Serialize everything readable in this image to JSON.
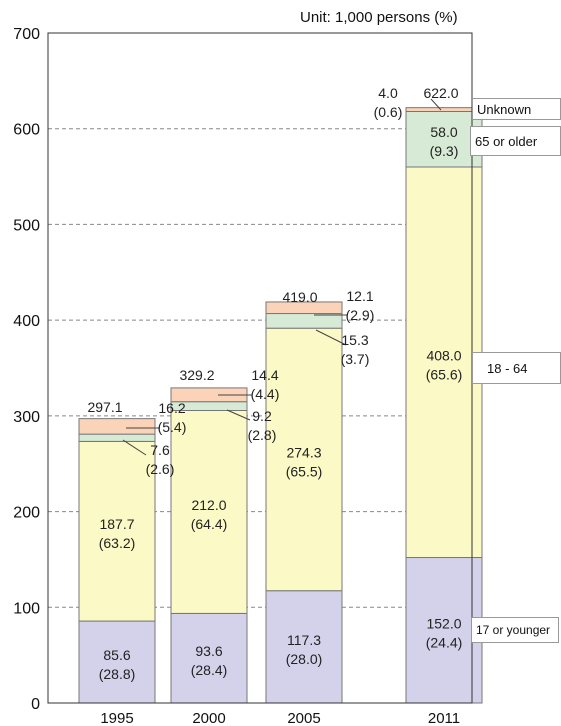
{
  "chart_data": {
    "type": "bar",
    "stacked": true,
    "unit": "Unit: 1,000 persons (%)",
    "categories": [
      "1995",
      "2000",
      "2005",
      "2011"
    ],
    "ylim": [
      0,
      700
    ],
    "yticks": [
      "0",
      "100",
      "200",
      "300",
      "400",
      "500",
      "600",
      "700"
    ],
    "grid": "dashed horizontal",
    "series": [
      {
        "name": "17 or younger",
        "color": "#d4d2ea",
        "values": [
          85.6,
          93.6,
          117.3,
          152.0
        ],
        "labels": [
          "85.6",
          "93.6",
          "117.3",
          "152.0"
        ],
        "pct": [
          "(28.8)",
          "(28.4)",
          "(28.0)",
          "(24.4)"
        ]
      },
      {
        "name": "18 - 64",
        "color": "#fbf9c6",
        "values": [
          187.7,
          212.0,
          274.3,
          408.0
        ],
        "labels": [
          "187.7",
          "212.0",
          "274.3",
          "408.0"
        ],
        "pct": [
          "(63.2)",
          "(64.4)",
          "(65.5)",
          "(65.6)"
        ]
      },
      {
        "name": "65 or older",
        "color": "#d6ead6",
        "values": [
          7.6,
          9.2,
          15.3,
          58.0
        ],
        "labels": [
          "7.6",
          "9.2",
          "15.3",
          "58.0"
        ],
        "pct": [
          "(2.6)",
          "(2.8)",
          "(3.7)",
          "(9.3)"
        ]
      },
      {
        "name": "Unknown",
        "color": "#fbd3b8",
        "values": [
          16.2,
          14.4,
          12.1,
          4.0
        ],
        "labels": [
          "16.2",
          "14.4",
          "12.1",
          "4.0"
        ],
        "pct": [
          "(5.4)",
          "(4.4)",
          "(2.9)",
          "(0.6)"
        ]
      }
    ],
    "totals": [
      "297.1",
      "329.2",
      "419.0",
      "622.0"
    ],
    "totals_values": [
      297.1,
      329.2,
      419.0,
      622.0
    ],
    "legend": [
      "Unknown",
      "65 or older",
      "18 - 64",
      "17 or younger"
    ]
  },
  "colors": {
    "bar_border": "#777777",
    "grid": "#888888",
    "axis": "#333333"
  }
}
